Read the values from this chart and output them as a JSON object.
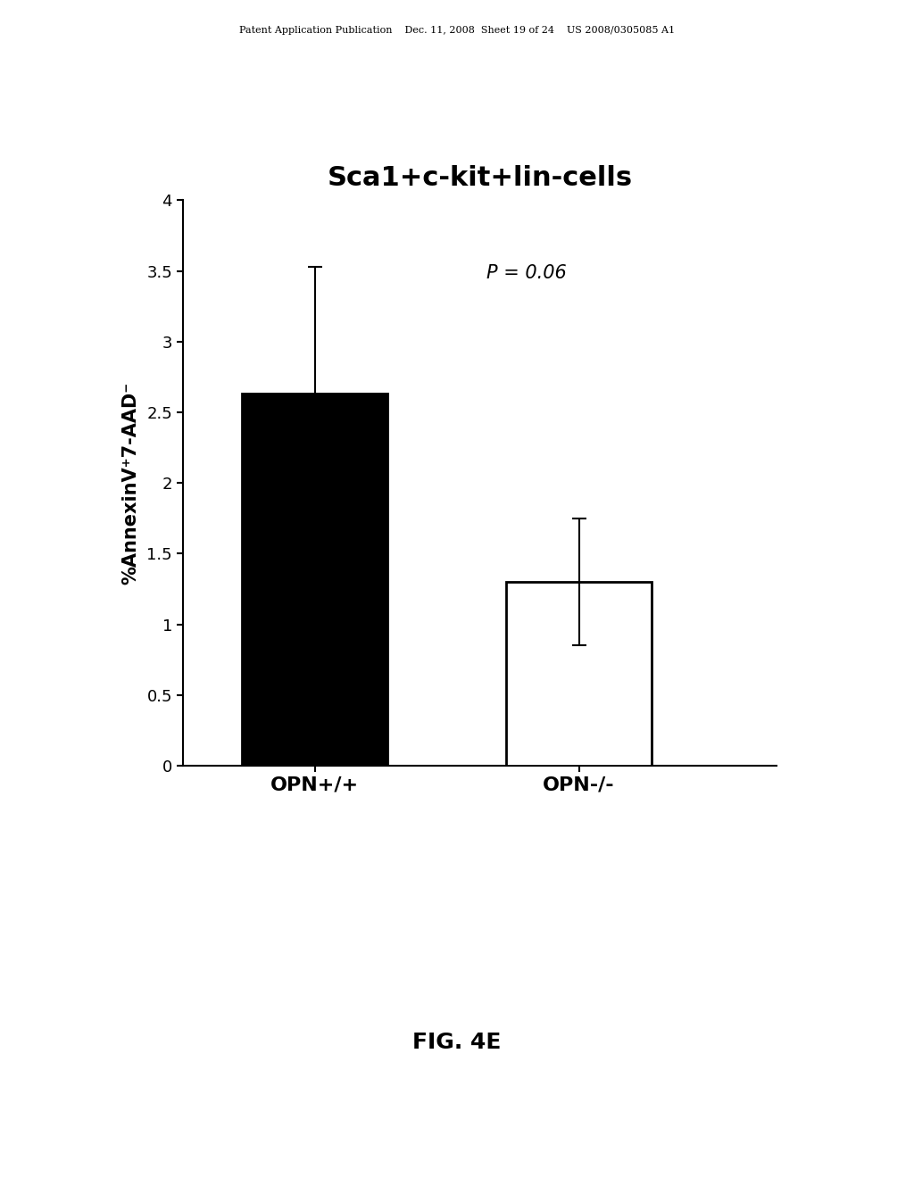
{
  "title": "Sca1+c-kit+lin-cells",
  "categories": [
    "OPN+/+",
    "OPN-/-"
  ],
  "values": [
    2.63,
    1.3
  ],
  "errors_up": [
    0.9,
    0.45
  ],
  "errors_down": [
    0.9,
    0.45
  ],
  "bar_colors": [
    "#000000",
    "#ffffff"
  ],
  "bar_edge_colors": [
    "#000000",
    "#000000"
  ],
  "ylabel": "%AnnexinV⁺7-AAD⁻",
  "ylim": [
    0,
    4.0
  ],
  "yticks": [
    0,
    0.5,
    1,
    1.5,
    2,
    2.5,
    3,
    3.5,
    4
  ],
  "ytick_labels": [
    "0",
    "0.5",
    "1",
    "1.5",
    "2",
    "2.5",
    "3",
    "3.5",
    "4"
  ],
  "p_value_text": "P = 0.06",
  "fig_label": "FIG. 4E",
  "header_text": "Patent Application Publication    Dec. 11, 2008  Sheet 19 of 24    US 2008/0305085 A1",
  "background_color": "#ffffff",
  "title_fontsize": 22,
  "ylabel_fontsize": 15,
  "tick_fontsize": 13,
  "xtick_fontsize": 16,
  "p_fontsize": 15,
  "fig_label_fontsize": 18
}
